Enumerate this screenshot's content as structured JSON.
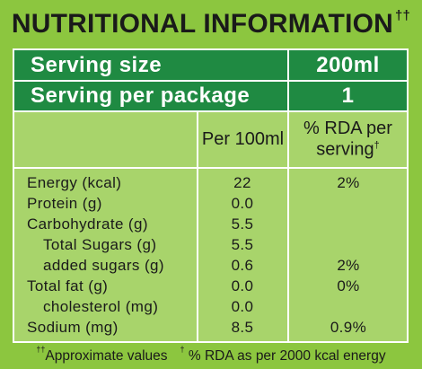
{
  "title": {
    "text": "NUTRITIONAL INFORMATION",
    "mark": "††"
  },
  "serving": {
    "size_label": "Serving size",
    "size_value": "200ml",
    "package_label": "Serving per package",
    "package_value": "1"
  },
  "columns": {
    "per100": "Per 100ml",
    "rda_line1": "% RDA per",
    "rda_line2": "serving",
    "rda_mark": "†"
  },
  "rows": [
    {
      "label": "Energy (kcal)",
      "per100": "22",
      "rda": "2%"
    },
    {
      "label": "Protein (g)",
      "per100": "0.0",
      "rda": ""
    },
    {
      "label": "Carbohydrate (g)",
      "per100": "5.5",
      "rda": ""
    },
    {
      "label": "Total Sugars (g)",
      "per100": "5.5",
      "rda": ""
    },
    {
      "label": "added sugars (g)",
      "per100": "0.6",
      "rda": "2%"
    },
    {
      "label": "Total fat (g)",
      "per100": "0.0",
      "rda": "0%"
    },
    {
      "label": "cholesterol (mg)",
      "per100": "0.0",
      "rda": ""
    },
    {
      "label": "Sodium (mg)",
      "per100": "8.5",
      "rda": "0.9%"
    }
  ],
  "footer": {
    "approx_mark": "††",
    "approx_text": "Approximate values",
    "rda_mark": "†",
    "rda_text": "% RDA as per 2000 kcal energy"
  },
  "colors": {
    "green_light": "#8cc63f",
    "green_dark": "#1f8a42",
    "green_mid": "#a8d46b"
  }
}
